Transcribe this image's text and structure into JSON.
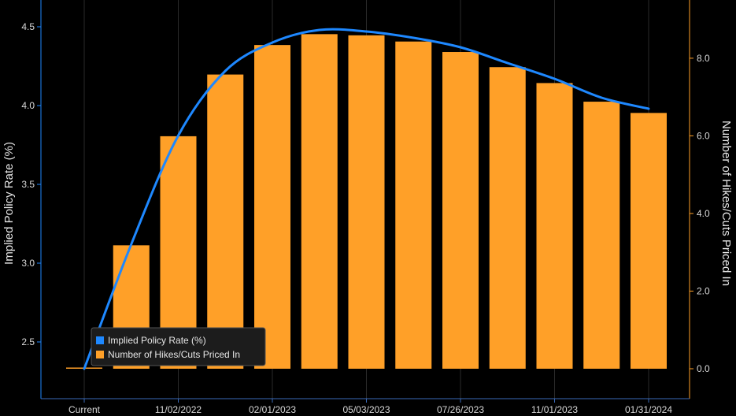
{
  "chart_data": {
    "type": "bar+line",
    "categories": [
      "Current",
      "",
      "11/02/2022",
      "",
      "02/01/2023",
      "",
      "05/03/2023",
      "",
      "07/26/2023",
      "",
      "11/01/2023",
      "",
      "01/31/2024"
    ],
    "x_tick_labels": [
      "Current",
      "11/02/2022",
      "02/01/2023",
      "05/03/2023",
      "07/26/2023",
      "11/01/2023",
      "01/31/2024"
    ],
    "series": [
      {
        "name": "Number of Hikes/Cuts Priced In",
        "type": "bar",
        "axis": "right",
        "color": "#ffa028",
        "values": [
          0.0,
          3.18,
          5.99,
          7.58,
          8.34,
          8.62,
          8.59,
          8.43,
          8.16,
          7.77,
          7.36,
          6.88,
          6.59
        ]
      },
      {
        "name": "Implied Policy Rate (%)",
        "type": "line",
        "axis": "left",
        "color": "#1e88ff",
        "values": [
          2.33,
          3.12,
          3.81,
          4.22,
          4.4,
          4.48,
          4.47,
          4.43,
          4.37,
          4.27,
          4.17,
          4.05,
          3.98
        ]
      }
    ],
    "ylabel": "Implied Policy Rate (%)",
    "ylim": [
      2.33,
      4.67
    ],
    "yticks": [
      2.5,
      3.0,
      3.5,
      4.0,
      4.5
    ],
    "y2label": "Number of Hikes/Cuts Priced In",
    "y2lim": [
      0.0,
      9.5
    ],
    "y2ticks": [
      0.0,
      2.0,
      4.0,
      6.0,
      8.0
    ],
    "grid": false,
    "legend": {
      "position": "bottom-left",
      "entries": [
        "Implied Policy Rate (%)",
        "Number of Hikes/Cuts Priced In"
      ]
    },
    "colors": {
      "background": "#000000",
      "left_axis": "#1e88ff",
      "right_axis": "#ffa028",
      "bottom_axis": "#3a6ab8"
    }
  }
}
